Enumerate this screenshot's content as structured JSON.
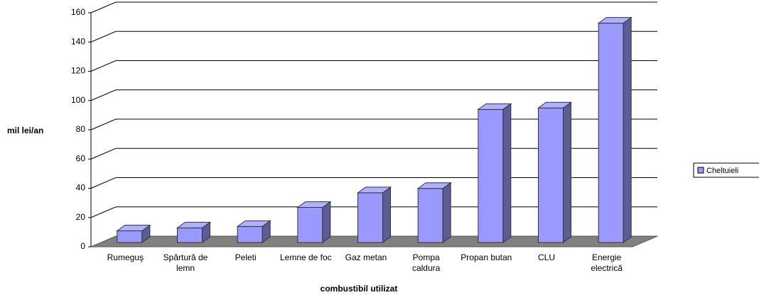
{
  "chart_data": {
    "type": "bar3d",
    "categories": [
      "Rumeguş",
      "Spărtură de lemn",
      "Peleti",
      "Lemne de foc",
      "Gaz metan",
      "Pompa caldura",
      "Propan butan",
      "CLU",
      "Energie electrică"
    ],
    "series": [
      {
        "name": "Cheltuieli",
        "color": "#9999ff",
        "values": [
          8,
          10,
          11,
          24,
          34,
          37,
          91,
          92,
          150
        ]
      }
    ],
    "ylim": [
      0,
      160
    ],
    "yticks": [
      0,
      20,
      40,
      60,
      80,
      100,
      120,
      140,
      160
    ],
    "y_label": "mil lei/an",
    "x_label": "combustibil utilizat",
    "grid": true,
    "legend": "right"
  }
}
